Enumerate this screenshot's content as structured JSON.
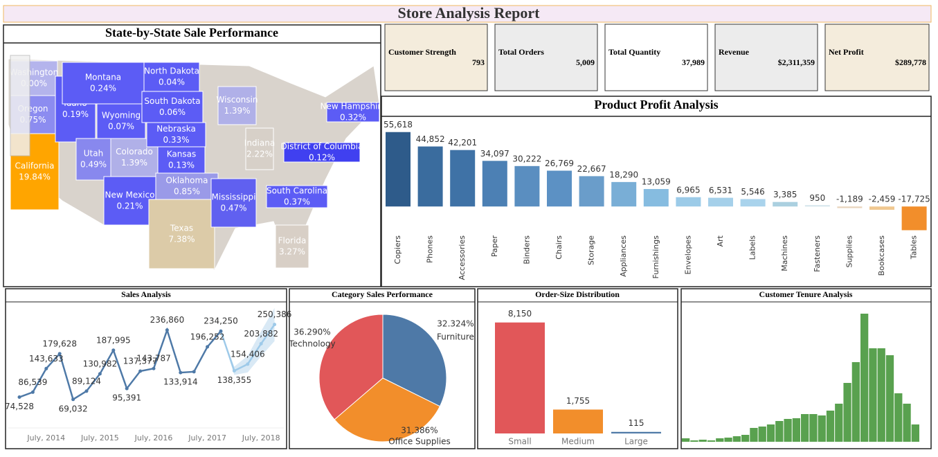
{
  "header": {
    "title": "Store Analysis Report"
  },
  "kpis": [
    {
      "label": "Customer Strength",
      "value": "793",
      "color": "#f4ecdc"
    },
    {
      "label": "Total Orders",
      "value": "5,009",
      "color": "#ececec"
    },
    {
      "label": "Total Quantity",
      "value": "37,989",
      "color": "#ffffff"
    },
    {
      "label": "Revenue",
      "value": "$2,311,359",
      "color": "#ececec"
    },
    {
      "label": "Net Profit",
      "value": "$289,778",
      "color": "#f4ecdc"
    }
  ],
  "chart_data": [
    {
      "type": "map",
      "title": "State-by-State Sale Performance",
      "categories": [
        "Washington",
        "Oregon",
        "California",
        "Idaho",
        "Montana",
        "Wyoming",
        "Utah",
        "Colorado",
        "New Mexico",
        "North Dakota",
        "South Dakota",
        "Nebraska",
        "Kansas",
        "Oklahoma",
        "Texas",
        "Wisconsin",
        "Indiana",
        "Mississippi",
        "District of Columbia",
        "New Hampshire",
        "South Carolina",
        "Florida"
      ],
      "values": [
        0,
        0.75,
        19.84,
        0.19,
        0.24,
        0.07,
        0.49,
        1.39,
        0.21,
        0.04,
        0.06,
        0.33,
        0.13,
        0.85,
        7.38,
        1.39,
        2.22,
        0.47,
        0.12,
        0.32,
        0.37,
        3.27
      ],
      "value_labels": [
        "0.00%",
        "0.75%",
        "19.84%",
        "0.19%",
        "0.24%",
        "0.07%",
        "0.49%",
        "1.39%",
        "0.21%",
        "0.04%",
        "0.06%",
        "0.33%",
        "0.13%",
        "0.85%",
        "7.38%",
        "1.39%",
        "2.22%",
        "0.47%",
        "0.12%",
        "0.32%",
        "0.37%",
        "3.27%"
      ],
      "colors": [
        "#b4b4ec",
        "#8c8cf0",
        "#ffa500",
        "#5c5cf5",
        "#5c5cf5",
        "#5c5cf5",
        "#8888ee",
        "#b0b0e8",
        "#5c5cf5",
        "#5c5cf5",
        "#5c5cf5",
        "#5c5cf5",
        "#5c5cf5",
        "#9a9ae8",
        "#dccba8",
        "#b0b0e8",
        "#d7d0c8",
        "#6060f0",
        "#4040f0",
        "#5c5cf5",
        "#5c5cf5",
        "#d8cfc6"
      ]
    },
    {
      "type": "bar",
      "title": "Product Profit Analysis",
      "categories": [
        "Copiers",
        "Phones",
        "Accessories",
        "Paper",
        "Binders",
        "Chairs",
        "Storage",
        "Appliances",
        "Furnishings",
        "Envelopes",
        "Art",
        "Labels",
        "Machines",
        "Fasteners",
        "Supplies",
        "Bookcases",
        "Tables"
      ],
      "values": [
        55618,
        44852,
        42201,
        34097,
        30222,
        26769,
        22667,
        18290,
        13059,
        6965,
        6531,
        5546,
        3385,
        950,
        -1189,
        -2459,
        -17725
      ],
      "value_labels": [
        "55,618",
        "44,852",
        "42,201",
        "34,097",
        "30,222",
        "26,769",
        "22,667",
        "18,290",
        "13,059",
        "6,965",
        "6,531",
        "5,546",
        "3,385",
        "950",
        "-1,189",
        "-2,459",
        "-17,725"
      ],
      "colors": [
        "#2e5b8a",
        "#3a6c9e",
        "#3f72a6",
        "#4c80b4",
        "#5a8ec0",
        "#5c91c4",
        "#6a9dca",
        "#79aed6",
        "#86bce0",
        "#9ccbe8",
        "#a5d0ea",
        "#a9d3ec",
        "#abd0e0",
        "#d0e3ea",
        "#e8d4bd",
        "#f0c890",
        "#f28e2b"
      ],
      "ylim": [
        -18000,
        56000
      ]
    },
    {
      "type": "line",
      "title": "Sales Analysis",
      "categories": [
        null,
        null,
        "July, 2014",
        null,
        null,
        null,
        "July, 2015",
        null,
        null,
        null,
        "July, 2016",
        null,
        null,
        null,
        "July, 2017",
        null,
        null,
        null,
        "July, 2018",
        null
      ],
      "series": [
        {
          "color": "#4e79a7",
          "values": [
            74528,
            86539,
            143633,
            179628,
            69032,
            89124,
            130982,
            187995,
            95391,
            137377,
            143787,
            236860,
            133914,
            136000,
            196252,
            234250,
            null,
            null,
            null,
            null
          ],
          "value_labels": [
            "74,528",
            "86,539",
            "143,633",
            "179,628",
            "69,032",
            "89,124",
            "130,982",
            "187,995",
            "95,391",
            "137,377",
            "143,787",
            "236,860",
            "133,914",
            null,
            "196,252",
            "234,250",
            null,
            null,
            null,
            null
          ]
        },
        {
          "color": "#9ecae9",
          "values": [
            null,
            null,
            null,
            null,
            null,
            null,
            null,
            null,
            null,
            null,
            null,
            null,
            null,
            null,
            null,
            null,
            138355,
            154406,
            203882,
            250386
          ],
          "value_labels": [
            null,
            null,
            null,
            null,
            null,
            null,
            null,
            null,
            null,
            null,
            null,
            null,
            null,
            null,
            null,
            null,
            "138,355",
            "154,406",
            "203,882",
            "250,386"
          ]
        }
      ],
      "ylim": [
        0,
        300000
      ]
    },
    {
      "type": "pie",
      "title": "Category Sales Performance",
      "categories": [
        "Furniture",
        "Office Supplies",
        "Technology"
      ],
      "values": [
        32.324,
        31.386,
        36.29
      ],
      "value_labels": [
        "32.324%",
        "31.386%",
        "36.290%"
      ],
      "colors": [
        "#4e79a7",
        "#f28e2b",
        "#e15759"
      ]
    },
    {
      "type": "bar",
      "title": "Order-Size Distribution",
      "categories": [
        "Small",
        "Medium",
        "Large"
      ],
      "values": [
        8150,
        1755,
        115
      ],
      "value_labels": [
        "8,150",
        "1,755",
        "115"
      ],
      "colors": [
        "#e15759",
        "#f28e2b",
        "#4e79a7"
      ],
      "ylim": [
        0,
        9000
      ]
    },
    {
      "type": "histogram",
      "title": "Customer Tenure Analysis",
      "values": [
        5,
        2,
        3,
        2,
        5,
        6,
        8,
        10,
        20,
        22,
        25,
        30,
        33,
        34,
        40,
        40,
        38,
        45,
        55,
        85,
        115,
        185,
        135,
        135,
        125,
        70,
        55,
        25
      ],
      "color": "#59a14f",
      "ylim": [
        0,
        200
      ]
    }
  ]
}
